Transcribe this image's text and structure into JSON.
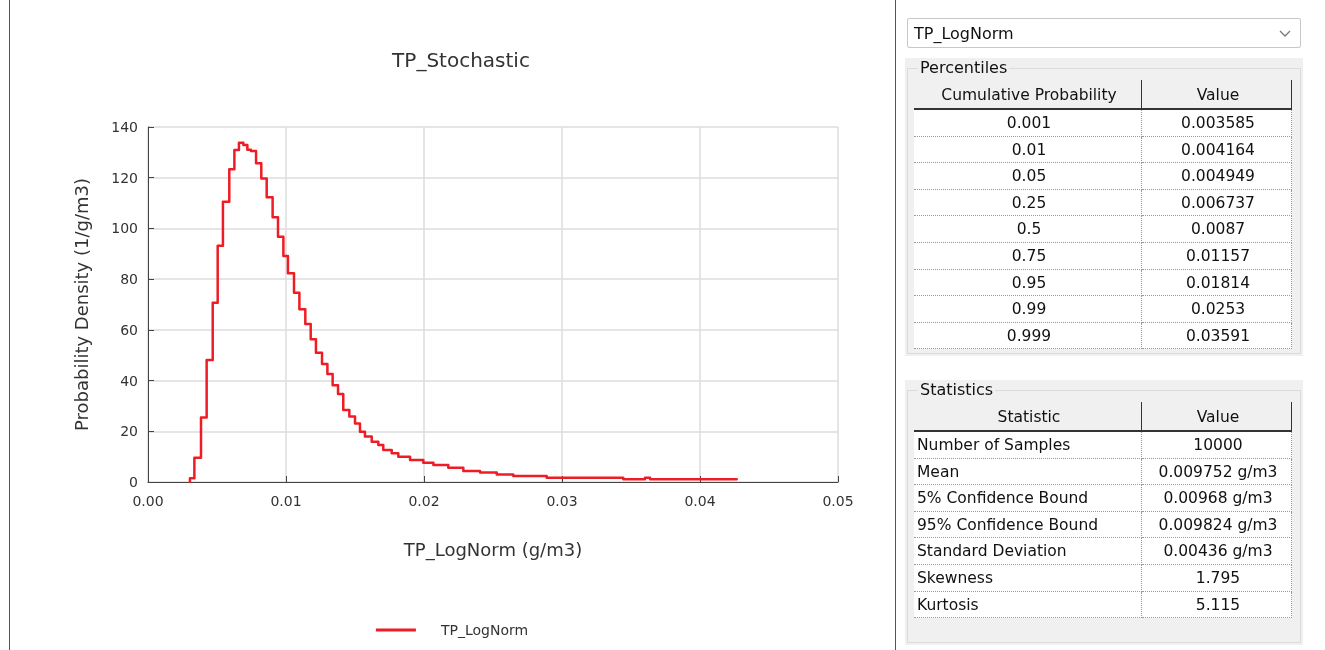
{
  "chart_data": [
    {
      "type": "step",
      "title": "TP_Stochastic",
      "xlabel": "TP_LogNorm (g/m3)",
      "ylabel": "Probability Density (1/g/m3)",
      "series": [
        {
          "name": "TP_LogNorm",
          "color": "#ee1c25",
          "x": [
            0.00304,
            0.00304,
            0.00336,
            0.00384,
            0.00425,
            0.00469,
            0.00505,
            0.00543,
            0.00589,
            0.00626,
            0.00659,
            0.00691,
            0.0072,
            0.00746,
            0.00783,
            0.00821,
            0.0086,
            0.00903,
            0.00942,
            0.00981,
            0.01014,
            0.01058,
            0.01097,
            0.0114,
            0.01179,
            0.01217,
            0.01261,
            0.013,
            0.01338,
            0.01377,
            0.01415,
            0.01459,
            0.015,
            0.01536,
            0.01572,
            0.01621,
            0.01669,
            0.01705,
            0.01766,
            0.01814,
            0.01899,
            0.01995,
            0.02068,
            0.02176,
            0.02285,
            0.02406,
            0.02527,
            0.02647,
            0.02889,
            0.03444,
            0.03601,
            0.03638,
            0.04266
          ],
          "values": [
            0,
            1.5,
            9.6,
            25.4,
            48.1,
            70.7,
            93.2,
            110.5,
            123.3,
            130.9,
            133.8,
            132.9,
            131,
            130.5,
            125.7,
            119.7,
            112.3,
            104.4,
            96.7,
            89.1,
            82.3,
            74.6,
            68.1,
            62.3,
            56.3,
            51,
            46.5,
            42.6,
            38.2,
            34.7,
            28.4,
            25.8,
            23.1,
            19.8,
            17.9,
            15.9,
            14.6,
            12.6,
            11.3,
            10,
            8.7,
            7.6,
            6.7,
            5.6,
            4.3,
            3.7,
            3,
            2.4,
            1.7,
            1.1,
            1.7,
            1.1,
            1.1
          ]
        }
      ],
      "xlim": [
        0,
        0.05
      ],
      "xticks": [
        {
          "value": 0,
          "label": "0.00"
        },
        0.01,
        0.02,
        0.03,
        0.04,
        0.05
      ],
      "ylim": [
        0,
        140
      ],
      "yticks": [
        0,
        20,
        40,
        60,
        80,
        100,
        120,
        140
      ],
      "grid": true,
      "legend": "bottom",
      "marker": "none",
      "line_style": "solid"
    },
    {
      "type": "other",
      "title": "TP_LogNorm"
    },
    {
      "type": "other",
      "title": "Percentiles",
      "annotations": [
        "Cumulative Probability",
        "Value",
        "0.001",
        "0.003585",
        "0.01",
        "0.004164",
        "0.05",
        "0.004949",
        "0.25",
        "0.006737",
        "0.5",
        "0.0087",
        "0.75",
        "0.01157",
        "0.95",
        "0.01814",
        "0.99",
        "0.0253",
        "0.999",
        "0.03591"
      ]
    },
    {
      "type": "other",
      "title": "Statistics",
      "annotations": [
        "Statistic",
        "Value",
        "Number of Samples",
        "10000",
        "Mean",
        "0.009752 g/m3",
        "5% Confidence Bound",
        "0.00968 g/m3",
        "95% Confidence Bound",
        "0.009824 g/m3",
        "Standard Deviation",
        "0.00436 g/m3",
        "Skewness",
        "1.795",
        "Kurtosis",
        "5.115"
      ]
    }
  ]
}
